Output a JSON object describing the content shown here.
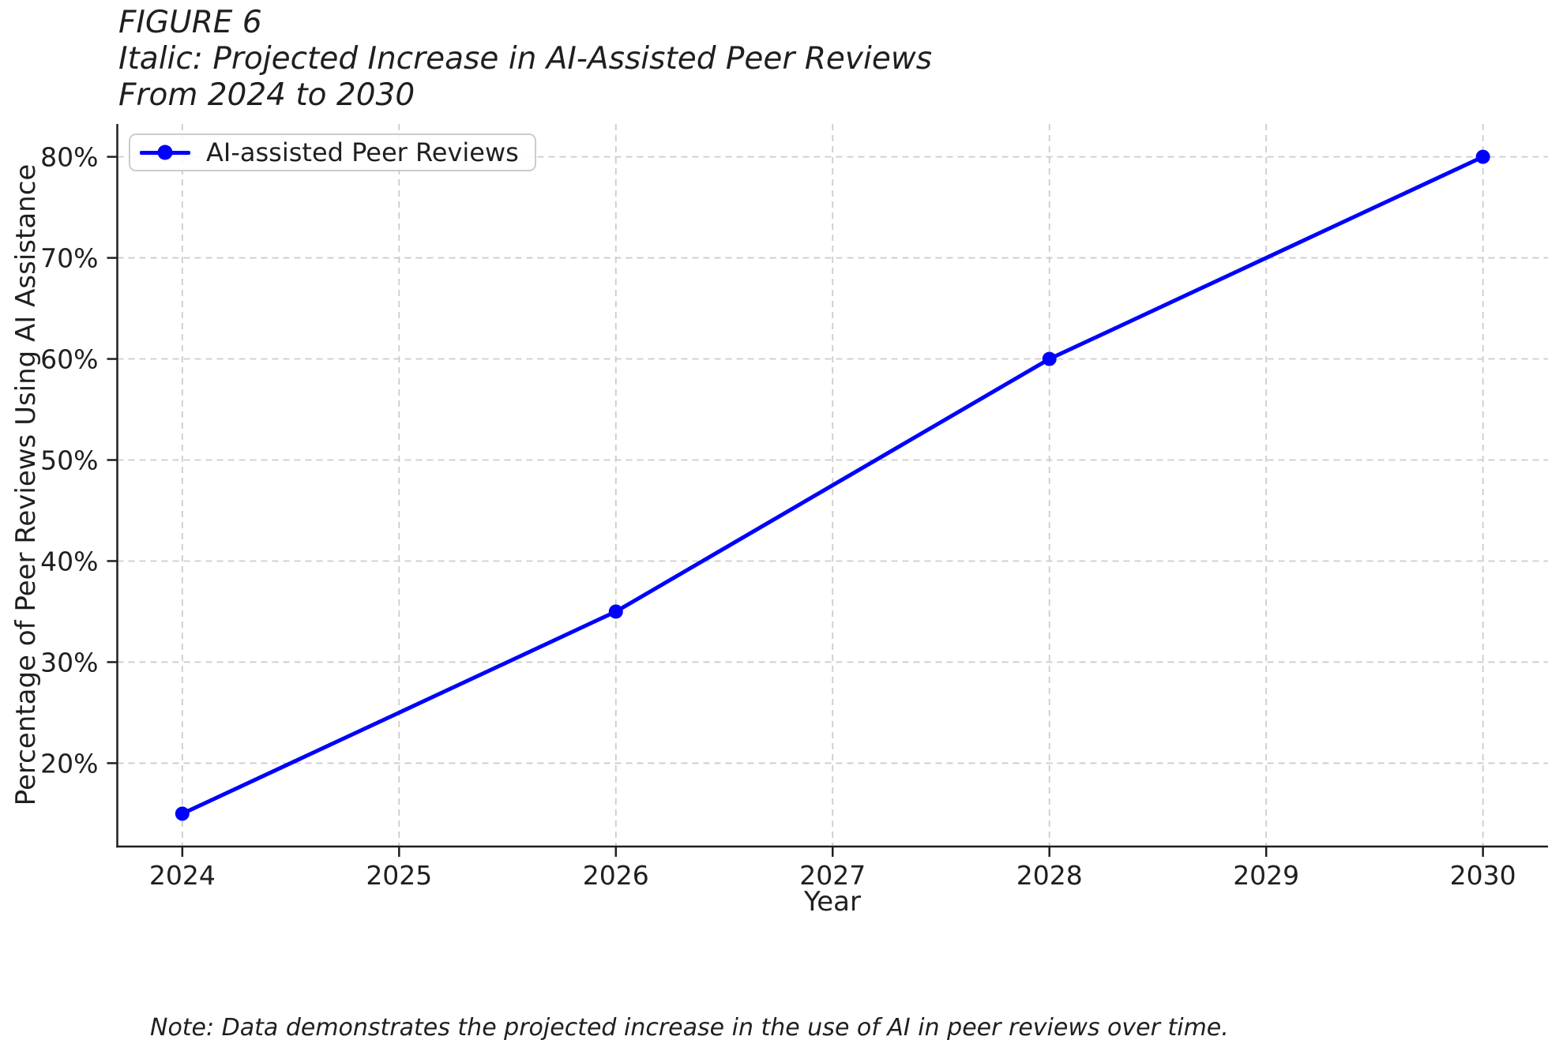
{
  "figure": {
    "note": "Note: Data demonstrates the projected increase in the use of AI in peer reviews over time."
  },
  "chart_data": {
    "type": "line",
    "title_lines": [
      "FIGURE 6",
      "Italic: Projected Increase in AI-Assisted Peer Reviews",
      "From 2024 to 2030"
    ],
    "xlabel": "Year",
    "ylabel": "Percentage of Peer Reviews Using AI Assistance",
    "x": [
      2024,
      2026,
      2028,
      2030
    ],
    "series": [
      {
        "name": "AI-assisted Peer Reviews",
        "values": [
          15,
          35,
          60,
          80
        ]
      }
    ],
    "x_ticks": [
      "2024",
      "2025",
      "2026",
      "2027",
      "2028",
      "2029",
      "2030"
    ],
    "y_ticks": [
      20,
      30,
      40,
      50,
      60,
      70,
      80
    ],
    "y_tick_labels": [
      "20%",
      "30%",
      "40%",
      "50%",
      "60%",
      "70%",
      "80%"
    ],
    "xlim": [
      2023.7,
      2030.3
    ],
    "ylim": [
      11.75,
      83.25
    ],
    "grid": true,
    "grid_style": "dashed",
    "legend_position": "upper left",
    "colors": {
      "line": "#0000ff",
      "grid": "#cccccc",
      "axis": "#1f1f1f",
      "text": "#1f1f1f"
    }
  }
}
